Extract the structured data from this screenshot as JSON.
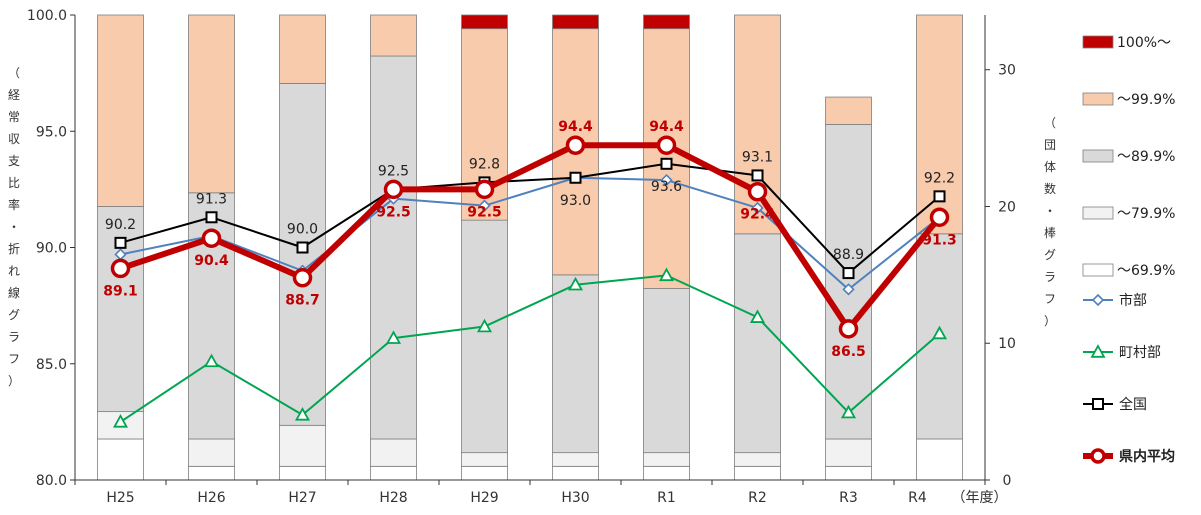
{
  "chart_data": {
    "type": "bar+line",
    "categories": [
      "H25",
      "H26",
      "H27",
      "H28",
      "H29",
      "H30",
      "R1",
      "R2",
      "R3",
      "R4"
    ],
    "x_suffix": "（年度）",
    "left_axis": {
      "label": "（経常収支比率・折れ線グラフ）",
      "ylim": [
        80.0,
        100.0
      ],
      "ticks": [
        "80.0",
        "85.0",
        "90.0",
        "95.0",
        "100.0"
      ]
    },
    "right_axis": {
      "label": "（団体数・棒グラフ）",
      "ylim": [
        0,
        34
      ],
      "ticks": [
        "0",
        "10",
        "20",
        "30"
      ]
    },
    "bar_series": [
      {
        "name": "～69.9%",
        "color": "#ffffff",
        "values": [
          3,
          1,
          1,
          1,
          1,
          1,
          1,
          1,
          1,
          3
        ]
      },
      {
        "name": "～79.9%",
        "color": "#f2f2f2",
        "values": [
          2,
          2,
          3,
          2,
          1,
          1,
          1,
          1,
          2,
          0
        ]
      },
      {
        "name": "～89.9%",
        "color": "#d9d9d9",
        "values": [
          15,
          18,
          25,
          28,
          17,
          13,
          12,
          16,
          23,
          15
        ]
      },
      {
        "name": "～99.9%",
        "color": "#f8cbad",
        "values": [
          14,
          13,
          5,
          3,
          14,
          18,
          19,
          16,
          2,
          16
        ]
      },
      {
        "name": "100%～",
        "color": "#c00000",
        "values": [
          0,
          0,
          0,
          0,
          1,
          1,
          1,
          0,
          0,
          0
        ]
      }
    ],
    "line_series": [
      {
        "name": "市部",
        "color": "#4f81bd",
        "marker": "diamond",
        "values": [
          89.7,
          90.5,
          89.0,
          92.1,
          91.8,
          93.0,
          92.9,
          91.7,
          88.2,
          91.3
        ]
      },
      {
        "name": "町村部",
        "color": "#00a550",
        "marker": "triangle",
        "values": [
          82.5,
          85.1,
          82.8,
          86.1,
          86.6,
          88.4,
          88.8,
          87.0,
          82.9,
          86.3
        ]
      },
      {
        "name": "県内平均",
        "color": "#c00000",
        "marker": "circle",
        "label_color": "#c00000",
        "values": [
          89.1,
          90.4,
          88.7,
          92.5,
          92.5,
          94.4,
          94.4,
          92.4,
          86.5,
          91.3
        ],
        "labels": [
          "89.1",
          "90.4",
          "88.7",
          "92.5",
          "92.5",
          "94.4",
          "94.4",
          "92.4",
          "86.5",
          "91.3"
        ]
      },
      {
        "name": "全国",
        "color": "#000000",
        "marker": "square",
        "label_color": "#222222",
        "values": [
          90.2,
          91.3,
          90.0,
          92.5,
          92.8,
          93.0,
          93.6,
          93.1,
          88.9,
          92.2
        ],
        "labels": [
          "90.2",
          "91.3",
          "90.0",
          "92.5",
          "92.8",
          "93.0",
          "93.6",
          "93.1",
          "88.9",
          "92.2"
        ]
      }
    ],
    "legend_position": "right",
    "grid": false
  }
}
